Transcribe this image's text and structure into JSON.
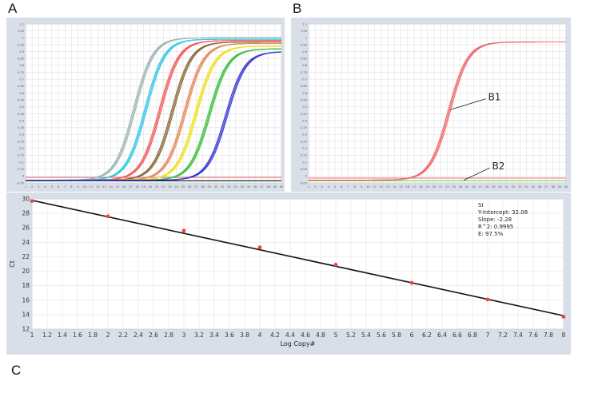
{
  "figure": {
    "panel_labels": [
      "A",
      "B",
      "C"
    ]
  },
  "chart_data": [
    {
      "id": "A",
      "type": "line",
      "title": "",
      "xlabel": "",
      "ylabel": "",
      "xlim": [
        1,
        40
      ],
      "ylim": [
        -0.05,
        1.1
      ],
      "x_ticks": [
        1,
        2,
        3,
        4,
        5,
        6,
        7,
        8,
        9,
        10,
        11,
        12,
        13,
        14,
        15,
        16,
        17,
        18,
        19,
        20,
        21,
        22,
        23,
        24,
        25,
        26,
        27,
        28,
        29,
        30,
        31,
        32,
        33,
        34,
        35,
        36,
        37,
        38,
        39,
        40
      ],
      "y_ticks": [
        -0.05,
        0,
        0.05,
        0.1,
        0.15,
        0.2,
        0.25,
        0.3,
        0.35,
        0.4,
        0.45,
        0.5,
        0.55,
        0.6,
        0.65,
        0.7,
        0.75,
        0.8,
        0.85,
        0.9,
        0.95,
        1,
        1.05,
        1.1
      ],
      "grid": true,
      "series": [
        {
          "color": "#9fb5b5",
          "midpoint": 17.6,
          "plateau": 1.0,
          "baseline": -0.03
        },
        {
          "color": "#37c7e6",
          "midpoint": 19.3,
          "plateau": 0.99,
          "baseline": -0.03
        },
        {
          "color": "#f25c5c",
          "midpoint": 21.5,
          "plateau": 0.98,
          "baseline": -0.03
        },
        {
          "color": "#8a6a3a",
          "midpoint": 23.4,
          "plateau": 0.97,
          "baseline": -0.03
        },
        {
          "color": "#e58a5f",
          "midpoint": 25.3,
          "plateau": 0.96,
          "baseline": -0.03
        },
        {
          "color": "#f2e020",
          "midpoint": 27.0,
          "plateau": 0.94,
          "baseline": -0.03
        },
        {
          "color": "#3fbf3f",
          "midpoint": 29.0,
          "plateau": 0.92,
          "baseline": -0.03
        },
        {
          "color": "#3a3ad6",
          "midpoint": 31.6,
          "plateau": 0.9,
          "baseline": -0.03
        }
      ],
      "flat_series": [
        {
          "color": "#e06a7a",
          "value": -0.01
        },
        {
          "color": "#222222",
          "value": -0.035
        }
      ]
    },
    {
      "id": "B",
      "type": "line",
      "title": "",
      "xlabel": "",
      "ylabel": "",
      "xlim": [
        1,
        40
      ],
      "ylim": [
        -0.05,
        1.1
      ],
      "x_ticks": [
        1,
        2,
        3,
        4,
        5,
        6,
        7,
        8,
        9,
        10,
        11,
        12,
        13,
        14,
        15,
        16,
        17,
        18,
        19,
        20,
        21,
        22,
        23,
        24,
        25,
        26,
        27,
        28,
        29,
        30,
        31,
        32,
        33,
        34,
        35,
        36,
        37,
        38,
        39,
        40
      ],
      "y_ticks": [
        -0.05,
        0,
        0.05,
        0.1,
        0.15,
        0.2,
        0.25,
        0.3,
        0.35,
        0.4,
        0.45,
        0.5,
        0.55,
        0.6,
        0.65,
        0.7,
        0.75,
        0.8,
        0.85,
        0.9,
        0.95,
        1,
        1.05,
        1.1
      ],
      "grid": true,
      "series": [
        {
          "name": "B1",
          "color": "#ee6a6a",
          "midpoint": 22.3,
          "plateau": 0.97,
          "baseline": -0.03
        }
      ],
      "flat_series": [
        {
          "name": "B2",
          "color": "#7ed957",
          "value": -0.035
        },
        {
          "color": "#e87a7a",
          "value": -0.015
        }
      ],
      "annotations": [
        {
          "text": "B1",
          "point": [
            22.5,
            0.48
          ],
          "label_at": [
            28.2,
            0.57
          ]
        },
        {
          "text": "B2",
          "point": [
            24.5,
            -0.03
          ],
          "label_at": [
            28.8,
            0.07
          ]
        }
      ]
    },
    {
      "id": "C",
      "type": "scatter",
      "title": "",
      "xlabel": "Log Copy#",
      "ylabel": "Ct",
      "xlim": [
        1,
        8
      ],
      "ylim": [
        12,
        30
      ],
      "x_ticks": [
        1,
        1.2,
        1.4,
        1.6,
        1.8,
        2,
        2.2,
        2.4,
        2.6,
        2.8,
        3,
        3.2,
        3.4,
        3.6,
        3.8,
        4,
        4.2,
        4.4,
        4.6,
        4.8,
        5,
        5.2,
        5.4,
        5.6,
        5.8,
        6,
        6.2,
        6.4,
        6.6,
        6.8,
        7,
        7.2,
        7.4,
        7.6,
        7.8,
        8
      ],
      "x_tick_labels": [
        "1",
        "1.2",
        "1.4",
        "1.6",
        "1.8",
        "2",
        "2.2",
        "2.4",
        "2.6",
        "2.8",
        "3",
        "3.2",
        "3.4",
        "3.6",
        "3.8",
        "4",
        "4.2",
        "4.4",
        "4.6",
        "4.8",
        "5",
        "5.2",
        "5.4",
        "5.6",
        "5.8",
        "6",
        "6.2",
        "6.4",
        "6.6",
        "6.8",
        "7",
        "7.2",
        "7.4",
        "7.6",
        "7.8",
        "8"
      ],
      "y_ticks": [
        12,
        14,
        16,
        18,
        20,
        22,
        24,
        26,
        28,
        30
      ],
      "grid": true,
      "points": {
        "x": [
          1,
          2,
          3,
          4,
          5,
          6,
          7,
          8
        ],
        "y": [
          29.7,
          27.6,
          25.6,
          23.3,
          20.9,
          18.4,
          16.1,
          13.7
        ]
      },
      "fit_line": {
        "x": [
          1,
          8
        ],
        "y": [
          29.8,
          13.85
        ]
      },
      "stats": [
        "SI",
        "Y-Intercept:     32.08",
        "Slope:      -2.28",
        "R^2:      0.9995",
        "E:      97.5%"
      ]
    }
  ]
}
